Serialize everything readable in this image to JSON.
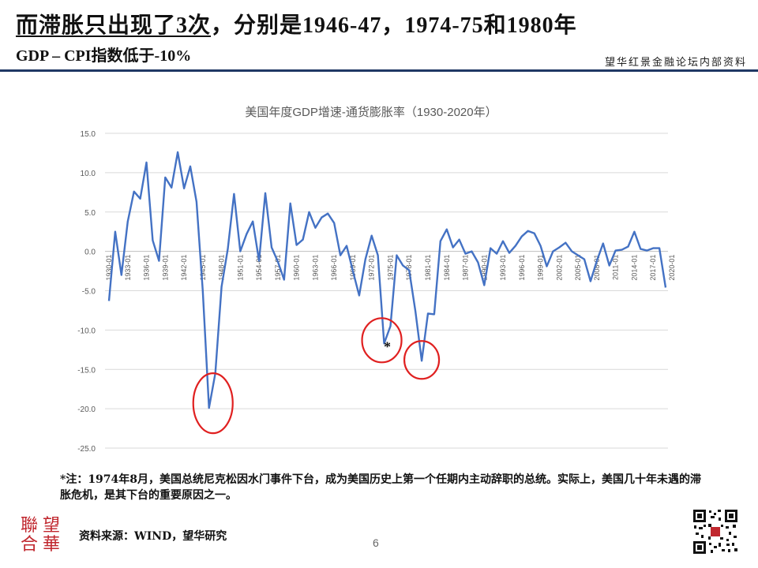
{
  "header": {
    "title_main": "而滞胀只出现了3次",
    "title_rest": "，分别是1946-47，1974-75和1980年",
    "subtitle": "GDP – CPI指数低于-10%",
    "source_tag": "望华红景金融论坛内部资料"
  },
  "chart_data": {
    "type": "line",
    "title": "美国年度GDP增速-通货膨胀率（1930-2020年）",
    "xlabel": "",
    "ylabel": "",
    "ylim": [
      -25,
      15
    ],
    "yticks": [
      "15.0",
      "10.0",
      "5.0",
      "0.0",
      "-5.0",
      "-10.0",
      "-15.0",
      "-20.0",
      "-25.0"
    ],
    "xticks": [
      "1930-01",
      "1933-01",
      "1936-01",
      "1939-01",
      "1942-01",
      "1945-01",
      "1948-01",
      "1951-01",
      "1954-01",
      "1957-01",
      "1960-01",
      "1963-01",
      "1966-01",
      "1969-01",
      "1972-01",
      "1975-01",
      "1978-01",
      "1981-01",
      "1984-01",
      "1987-01",
      "1990-01",
      "1993-01",
      "1996-01",
      "1999-01",
      "2002-01",
      "2005-01",
      "2008-01",
      "2011-01",
      "2014-01",
      "2017-01",
      "2020-01"
    ],
    "x_start_year": 1930,
    "series": [
      {
        "color": "#4472c4",
        "values": [
          -6.3,
          2.5,
          -3.0,
          3.8,
          7.6,
          6.7,
          11.3,
          1.4,
          -1.2,
          9.4,
          8.1,
          12.6,
          8.0,
          10.8,
          6.3,
          -5.0,
          -19.9,
          -15.5,
          -4.5,
          0.3,
          7.3,
          0.0,
          2.2,
          3.8,
          -1.2,
          7.4,
          0.5,
          -1.3,
          -3.6,
          6.1,
          0.8,
          1.5,
          5.0,
          3.0,
          4.3,
          4.8,
          3.6,
          -0.5,
          0.7,
          -2.5,
          -5.6,
          -1.0,
          2.0,
          -0.5,
          -11.7,
          -9.5,
          -0.5,
          -1.8,
          -2.4,
          -7.6,
          -13.9,
          -7.9,
          -8.0,
          1.3,
          2.8,
          0.5,
          1.5,
          -0.3,
          0.0,
          -1.4,
          -4.3,
          0.4,
          -0.3,
          1.3,
          -0.2,
          0.7,
          1.9,
          2.6,
          2.3,
          0.7,
          -1.9,
          0.0,
          0.5,
          1.1,
          0.0,
          -0.5,
          -1.0,
          -3.8,
          -1.2,
          1.0,
          -1.8,
          0.1,
          0.2,
          0.6,
          2.5,
          0.3,
          0.1,
          0.4,
          0.4,
          -4.6
        ]
      }
    ],
    "annotations": [
      {
        "label": "*",
        "color": "#111111"
      }
    ],
    "highlight_color": "#e02020",
    "grid": true
  },
  "note": "*注：1974年8月，美国总统尼克松因水门事件下台，成为美国历史上第一个任期内主动辞职的总统。实际上，美国几十年未遇的滞胀危机，是其下台的重要原因之一。",
  "footer": {
    "logo_chars": [
      "聯",
      "望",
      "合",
      "華"
    ],
    "source": "资料来源：WIND，望华研究",
    "page_number": "6"
  }
}
